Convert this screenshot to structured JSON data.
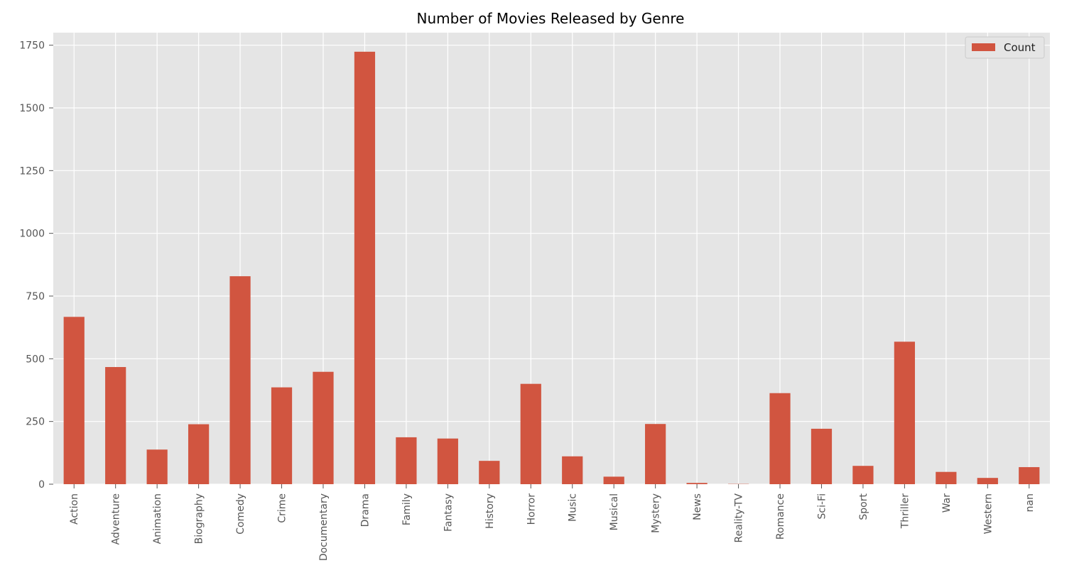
{
  "chart_data": {
    "type": "bar",
    "title": "Number of Movies Released by Genre",
    "xlabel": "",
    "ylabel": "",
    "categories": [
      "Action",
      "Adventure",
      "Animation",
      "Biography",
      "Comedy",
      "Crime",
      "Documentary",
      "Drama",
      "Family",
      "Fantasy",
      "History",
      "Horror",
      "Music",
      "Musical",
      "Mystery",
      "News",
      "Reality-TV",
      "Romance",
      "Sci-Fi",
      "Sport",
      "Thriller",
      "War",
      "Western",
      "nan"
    ],
    "series": [
      {
        "name": "Count",
        "values": [
          667,
          467,
          138,
          239,
          829,
          386,
          448,
          1724,
          187,
          182,
          93,
          400,
          111,
          30,
          240,
          5,
          1,
          363,
          221,
          73,
          568,
          49,
          25,
          68
        ]
      }
    ],
    "yticks": [
      "0",
      "250",
      "500",
      "750",
      "1000",
      "1250",
      "1500",
      "1750"
    ],
    "ylim": [
      0,
      1800
    ],
    "grid": true,
    "legend_position": "upper right",
    "colors": {
      "bar": "#d15540",
      "plot_background": "#e5e5e5",
      "grid": "#ffffff"
    }
  }
}
